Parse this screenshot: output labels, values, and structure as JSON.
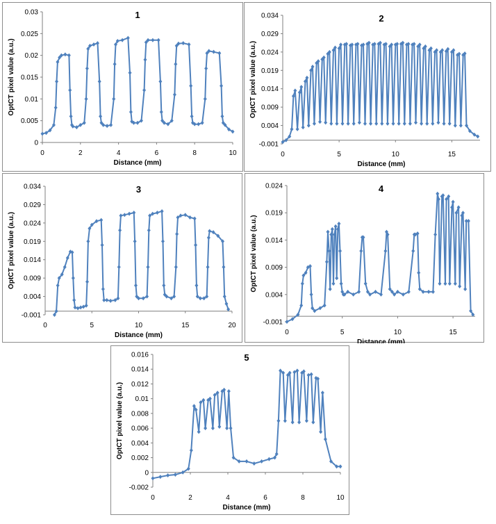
{
  "chart_data": [
    {
      "type": "line",
      "title": "1",
      "xlabel": "Distance (mm)",
      "ylabel": "OptCT pixel value (a.u.)",
      "xlim": [
        0,
        10
      ],
      "ylim": [
        0,
        0.03
      ],
      "xticks": [
        0,
        2,
        4,
        6,
        8,
        10
      ],
      "xtick_labels": [
        "0",
        "2",
        "4",
        "6",
        "8",
        "10"
      ],
      "yticks": [
        0,
        0.005,
        0.01,
        0.015,
        0.02,
        0.025,
        0.03
      ],
      "ytick_labels": [
        "0",
        "0.005",
        "0.01",
        "0.015",
        "0.02",
        "0.025",
        "0.03"
      ],
      "series": [
        {
          "x": [
            0,
            0.2,
            0.4,
            0.6,
            0.7,
            0.75,
            0.8,
            0.9,
            1.0,
            1.2,
            1.4,
            1.45,
            1.5,
            1.55,
            1.6,
            1.8,
            2.0,
            2.2,
            2.3,
            2.35,
            2.4,
            2.5,
            2.7,
            2.9,
            3.0,
            3.05,
            3.1,
            3.2,
            3.4,
            3.6,
            3.75,
            3.8,
            3.85,
            3.95,
            4.2,
            4.5,
            4.6,
            4.65,
            4.7,
            4.8,
            5.0,
            5.2,
            5.35,
            5.4,
            5.45,
            5.55,
            5.8,
            6.1,
            6.2,
            6.25,
            6.3,
            6.4,
            6.6,
            6.8,
            6.95,
            7.0,
            7.05,
            7.15,
            7.4,
            7.7,
            7.8,
            7.85,
            7.9,
            8.0,
            8.2,
            8.4,
            8.55,
            8.6,
            8.65,
            8.75,
            9.0,
            9.3,
            9.4,
            9.45,
            9.5,
            9.6,
            9.8,
            10.0
          ],
          "y": [
            0.002,
            0.0022,
            0.0028,
            0.004,
            0.008,
            0.014,
            0.0185,
            0.0195,
            0.02,
            0.0202,
            0.02,
            0.012,
            0.006,
            0.004,
            0.0037,
            0.0035,
            0.004,
            0.0045,
            0.01,
            0.017,
            0.0215,
            0.0222,
            0.0225,
            0.0228,
            0.014,
            0.006,
            0.0045,
            0.004,
            0.0038,
            0.004,
            0.01,
            0.018,
            0.0225,
            0.0233,
            0.0235,
            0.024,
            0.016,
            0.007,
            0.0048,
            0.0045,
            0.0045,
            0.005,
            0.012,
            0.019,
            0.023,
            0.0235,
            0.0235,
            0.0235,
            0.014,
            0.007,
            0.005,
            0.0045,
            0.0042,
            0.005,
            0.011,
            0.018,
            0.0222,
            0.0227,
            0.0228,
            0.0225,
            0.013,
            0.006,
            0.0045,
            0.0042,
            0.0042,
            0.0045,
            0.01,
            0.017,
            0.0205,
            0.021,
            0.0208,
            0.0205,
            0.013,
            0.006,
            0.0045,
            0.004,
            0.003,
            0.0025
          ]
        }
      ]
    },
    {
      "type": "line",
      "title": "2",
      "xlabel": "Distance (mm)",
      "ylabel": "OptCT pixel value (a.u.)",
      "xlim": [
        0,
        17.5
      ],
      "ylim": [
        -0.001,
        0.034
      ],
      "xticks": [
        0,
        5,
        10,
        15
      ],
      "xtick_labels": [
        "0",
        "5",
        "10",
        "15"
      ],
      "yticks": [
        -0.001,
        0.004,
        0.009,
        0.014,
        0.019,
        0.024,
        0.029,
        0.034
      ],
      "ytick_labels": [
        "-0.001",
        "0.004",
        "0.009",
        "0.014",
        "0.019",
        "0.024",
        "0.029",
        "0.034"
      ],
      "series": [
        {
          "x": [
            0,
            0.3,
            0.6,
            0.8,
            0.95,
            1.1,
            1.3,
            1.5,
            1.65,
            1.8,
            2.0,
            2.15,
            2.3,
            2.5,
            2.65,
            2.8,
            3.0,
            3.15,
            3.3,
            3.5,
            3.65,
            3.8,
            4.0,
            4.15,
            4.3,
            4.5,
            4.65,
            4.8,
            5.0,
            5.15,
            5.3,
            5.5,
            5.65,
            5.8,
            6.0,
            6.15,
            6.3,
            6.5,
            6.65,
            6.8,
            7.0,
            7.15,
            7.3,
            7.5,
            7.65,
            7.8,
            8.0,
            8.15,
            8.3,
            8.5,
            8.65,
            8.8,
            9.0,
            9.15,
            9.3,
            9.5,
            9.65,
            9.8,
            10.0,
            10.15,
            10.3,
            10.5,
            10.65,
            10.8,
            11.0,
            11.15,
            11.3,
            11.5,
            11.65,
            11.8,
            12.0,
            12.15,
            12.3,
            12.5,
            12.65,
            12.8,
            13.0,
            13.15,
            13.3,
            13.5,
            13.65,
            13.8,
            14.0,
            14.15,
            14.3,
            14.5,
            14.65,
            14.8,
            15.0,
            15.15,
            15.3,
            15.5,
            15.65,
            15.8,
            16.0,
            16.15,
            16.3,
            16.6,
            17.0,
            17.3
          ],
          "y": [
            -0.0005,
            0,
            0.001,
            0.003,
            0.012,
            0.0135,
            0.003,
            0.013,
            0.0145,
            0.0035,
            0.016,
            0.017,
            0.004,
            0.019,
            0.02,
            0.0045,
            0.021,
            0.0215,
            0.005,
            0.022,
            0.0225,
            0.0048,
            0.0235,
            0.024,
            0.0045,
            0.0245,
            0.0252,
            0.0045,
            0.025,
            0.026,
            0.0045,
            0.026,
            0.0262,
            0.0045,
            0.0258,
            0.026,
            0.0045,
            0.026,
            0.0262,
            0.0048,
            0.0258,
            0.026,
            0.0045,
            0.0262,
            0.0265,
            0.0045,
            0.026,
            0.0262,
            0.0045,
            0.0262,
            0.0265,
            0.0045,
            0.026,
            0.0262,
            0.0045,
            0.0255,
            0.026,
            0.0045,
            0.026,
            0.0262,
            0.0045,
            0.0262,
            0.0265,
            0.0045,
            0.026,
            0.0262,
            0.0045,
            0.026,
            0.0262,
            0.0048,
            0.0255,
            0.026,
            0.0045,
            0.025,
            0.0255,
            0.0045,
            0.0245,
            0.025,
            0.0045,
            0.024,
            0.0245,
            0.0048,
            0.024,
            0.0245,
            0.0045,
            0.0242,
            0.0248,
            0.0045,
            0.024,
            0.0245,
            0.004,
            0.0232,
            0.0235,
            0.004,
            0.0232,
            0.0236,
            0.004,
            0.0025,
            0.0015,
            0.001
          ]
        }
      ]
    },
    {
      "type": "line",
      "title": "3",
      "xlabel": "Distance (mm)",
      "ylabel": "OptCT pixel value (a.u.)",
      "xlim": [
        0,
        20
      ],
      "ylim": [
        -0.001,
        0.034
      ],
      "xticks": [
        0,
        5,
        10,
        15,
        20
      ],
      "xtick_labels": [
        "0",
        "5",
        "10",
        "15",
        "20"
      ],
      "yticks": [
        -0.001,
        0.004,
        0.009,
        0.014,
        0.019,
        0.024,
        0.029,
        0.034
      ],
      "ytick_labels": [
        "-0.001",
        "0.004",
        "0.009",
        "0.014",
        "0.019",
        "0.024",
        "0.029",
        "0.034"
      ],
      "series": [
        {
          "x": [
            1.0,
            1.2,
            1.35,
            1.5,
            1.8,
            2.1,
            2.4,
            2.7,
            2.9,
            3.0,
            3.1,
            3.2,
            3.5,
            3.8,
            4.1,
            4.4,
            4.5,
            4.6,
            4.75,
            5.0,
            5.5,
            6.0,
            6.1,
            6.2,
            6.3,
            6.6,
            7.0,
            7.5,
            7.8,
            7.9,
            8.0,
            8.1,
            8.5,
            9.0,
            9.5,
            9.6,
            9.7,
            9.8,
            10.0,
            10.5,
            10.9,
            11.0,
            11.1,
            11.2,
            11.5,
            12.0,
            12.5,
            12.6,
            12.7,
            12.8,
            13.0,
            13.5,
            13.8,
            14.0,
            14.1,
            14.2,
            14.5,
            15.0,
            15.5,
            16.0,
            16.1,
            16.2,
            16.3,
            16.6,
            17.0,
            17.3,
            17.4,
            17.5,
            17.6,
            18.0,
            18.5,
            19.0,
            19.1,
            19.2,
            19.4,
            19.6
          ],
          "y": [
            -0.001,
            0,
            0.007,
            0.009,
            0.01,
            0.012,
            0.0145,
            0.0162,
            0.016,
            0.009,
            0.003,
            0.001,
            0.0008,
            0.001,
            0.0012,
            0.0015,
            0.008,
            0.019,
            0.0225,
            0.0235,
            0.0245,
            0.0248,
            0.018,
            0.006,
            0.003,
            0.003,
            0.0028,
            0.003,
            0.0035,
            0.012,
            0.022,
            0.026,
            0.0262,
            0.0265,
            0.0268,
            0.019,
            0.007,
            0.004,
            0.0035,
            0.0035,
            0.004,
            0.012,
            0.022,
            0.026,
            0.0265,
            0.0268,
            0.0272,
            0.019,
            0.007,
            0.0045,
            0.004,
            0.0035,
            0.004,
            0.012,
            0.021,
            0.0255,
            0.026,
            0.0262,
            0.0255,
            0.0252,
            0.018,
            0.007,
            0.004,
            0.0035,
            0.0035,
            0.004,
            0.012,
            0.02,
            0.0218,
            0.0215,
            0.0205,
            0.019,
            0.012,
            0.004,
            0.002,
            0.0005
          ]
        }
      ]
    },
    {
      "type": "line",
      "title": "4",
      "xlabel": "Distance (mm)",
      "ylabel": "OptCT pixel value (a.u.)",
      "xlim": [
        0,
        17
      ],
      "ylim": [
        -0.001,
        0.024
      ],
      "xticks": [
        0,
        5,
        10,
        15
      ],
      "xtick_labels": [
        "0",
        "5",
        "10",
        "15"
      ],
      "yticks": [
        -0.001,
        0.004,
        0.009,
        0.014,
        0.019,
        0.024
      ],
      "ytick_labels": [
        "-0.001",
        "0.004",
        "0.009",
        "0.014",
        "0.019",
        "0.024"
      ],
      "series": [
        {
          "x": [
            0,
            0.5,
            1.0,
            1.3,
            1.4,
            1.5,
            1.7,
            1.9,
            2.1,
            2.2,
            2.3,
            2.5,
            3.0,
            3.4,
            3.6,
            3.7,
            3.8,
            3.9,
            4.0,
            4.1,
            4.2,
            4.3,
            4.4,
            4.5,
            4.6,
            4.7,
            4.8,
            4.9,
            5.0,
            5.1,
            5.2,
            5.5,
            6.0,
            6.5,
            6.7,
            6.8,
            6.9,
            7.1,
            7.3,
            7.5,
            8.0,
            8.5,
            8.9,
            9.0,
            9.1,
            9.3,
            9.5,
            9.7,
            10.0,
            10.5,
            11.0,
            11.4,
            11.5,
            11.6,
            11.8,
            11.9,
            12.0,
            12.3,
            12.8,
            13.2,
            13.4,
            13.6,
            13.7,
            13.8,
            14.0,
            14.1,
            14.3,
            14.4,
            14.6,
            14.7,
            14.9,
            15.0,
            15.2,
            15.3,
            15.5,
            15.6,
            15.8,
            15.9,
            16.1,
            16.2,
            16.4,
            16.6,
            16.8
          ],
          "y": [
            -0.001,
            -0.0005,
            0.0003,
            0.002,
            0.006,
            0.0075,
            0.008,
            0.009,
            0.0092,
            0.004,
            0.0015,
            0.001,
            0.0015,
            0.002,
            0.01,
            0.0155,
            0.012,
            0.005,
            0.015,
            0.016,
            0.006,
            0.015,
            0.0165,
            0.007,
            0.016,
            0.017,
            0.012,
            0.006,
            0.0045,
            0.004,
            0.004,
            0.0045,
            0.004,
            0.0045,
            0.012,
            0.0145,
            0.0145,
            0.006,
            0.0045,
            0.004,
            0.0045,
            0.004,
            0.012,
            0.0155,
            0.015,
            0.005,
            0.0045,
            0.004,
            0.0045,
            0.004,
            0.0045,
            0.012,
            0.015,
            0.015,
            0.0152,
            0.008,
            0.005,
            0.0045,
            0.0045,
            0.0045,
            0.015,
            0.0225,
            0.0215,
            0.006,
            0.022,
            0.0222,
            0.006,
            0.0215,
            0.022,
            0.006,
            0.02,
            0.021,
            0.006,
            0.019,
            0.02,
            0.0055,
            0.0185,
            0.019,
            0.005,
            0.0175,
            0.0175,
            0.001,
            0.0003
          ]
        }
      ]
    },
    {
      "type": "line",
      "title": "5",
      "xlabel": "Distance (mm)",
      "ylabel": "OptCT pixel value (a.u.)",
      "xlim": [
        0,
        10
      ],
      "ylim": [
        -0.002,
        0.016
      ],
      "xticks": [
        0,
        2,
        4,
        6,
        8,
        10
      ],
      "xtick_labels": [
        "0",
        "2",
        "4",
        "6",
        "8",
        "10"
      ],
      "yticks": [
        -0.002,
        0,
        0.002,
        0.004,
        0.006,
        0.008,
        0.01,
        0.012,
        0.014,
        0.016
      ],
      "ytick_labels": [
        "-0.002",
        "0",
        "0.002",
        "0.004",
        "0.006",
        "0.008",
        "0.01",
        "0.012",
        "0.014",
        "0.016"
      ],
      "series": [
        {
          "x": [
            0,
            0.4,
            0.8,
            1.2,
            1.6,
            1.9,
            2.05,
            2.2,
            2.3,
            2.45,
            2.55,
            2.7,
            2.8,
            2.95,
            3.05,
            3.2,
            3.3,
            3.45,
            3.55,
            3.7,
            3.8,
            3.95,
            4.05,
            4.15,
            4.3,
            4.6,
            5.0,
            5.4,
            5.8,
            6.2,
            6.5,
            6.6,
            6.7,
            6.8,
            6.95,
            7.05,
            7.2,
            7.3,
            7.45,
            7.55,
            7.7,
            7.8,
            7.95,
            8.05,
            8.2,
            8.3,
            8.45,
            8.55,
            8.7,
            8.8,
            8.95,
            9.05,
            9.2,
            9.5,
            9.8,
            10.0
          ],
          "y": [
            -0.0008,
            -0.0006,
            -0.0004,
            -0.0003,
            0,
            0.0005,
            0.003,
            0.009,
            0.0085,
            0.0055,
            0.0095,
            0.0098,
            0.006,
            0.0098,
            0.01,
            0.006,
            0.0105,
            0.0108,
            0.0062,
            0.011,
            0.0112,
            0.006,
            0.011,
            0.006,
            0.002,
            0.0015,
            0.0015,
            0.0012,
            0.0015,
            0.0018,
            0.002,
            0.0025,
            0.007,
            0.0138,
            0.0135,
            0.007,
            0.0132,
            0.0135,
            0.0068,
            0.0136,
            0.0138,
            0.0068,
            0.0135,
            0.0137,
            0.007,
            0.0132,
            0.0133,
            0.0068,
            0.0128,
            0.0127,
            0.0055,
            0.0108,
            0.0045,
            0.0015,
            0.0008,
            0.0008
          ]
        }
      ]
    }
  ]
}
